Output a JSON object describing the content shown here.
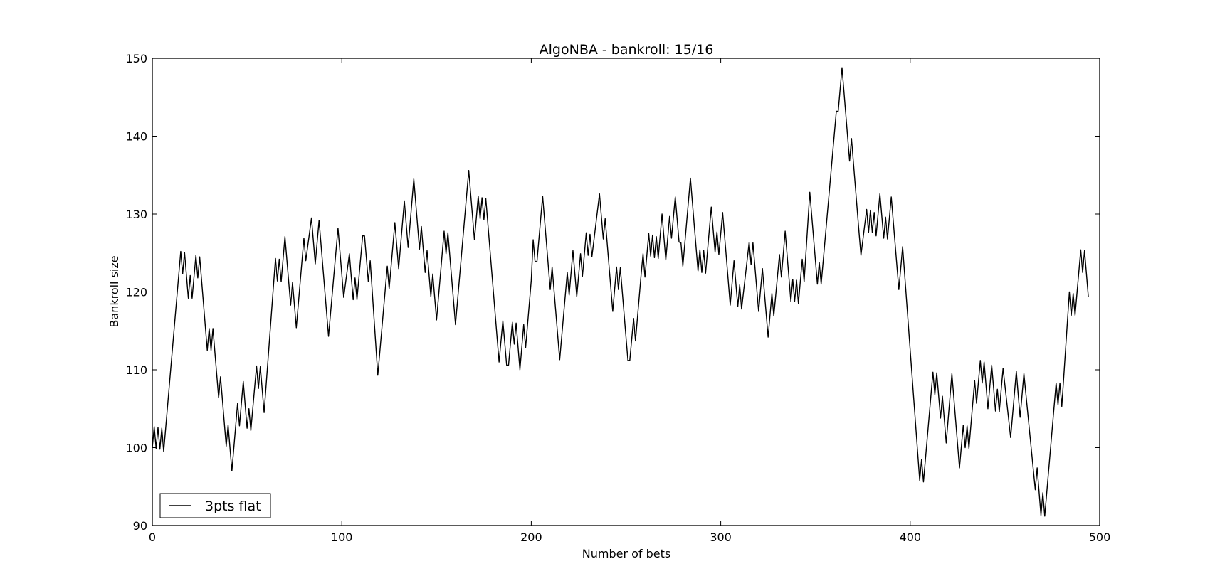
{
  "chart_data": {
    "type": "line",
    "title": "AlgoNBA - bankroll: 15/16",
    "xlabel": "Number of bets",
    "ylabel": "Bankroll size",
    "xlim": [
      0,
      500
    ],
    "ylim": [
      90,
      150
    ],
    "xticks": [
      "0",
      "100",
      "200",
      "300",
      "400",
      "500"
    ],
    "yticks": [
      "90",
      "100",
      "110",
      "120",
      "130",
      "140",
      "150"
    ],
    "grid": false,
    "legend_position": "lower-left",
    "series": [
      {
        "name": "3pts flat",
        "color": "#000000",
        "points": [
          [
            0,
            100
          ],
          [
            1,
            102.7
          ],
          [
            2,
            99.9
          ],
          [
            3,
            102.6
          ],
          [
            4,
            99.8
          ],
          [
            5,
            102.5
          ],
          [
            6,
            99.5
          ],
          [
            15,
            125.2
          ],
          [
            16,
            122.3
          ],
          [
            17,
            125.1
          ],
          [
            19,
            119.2
          ],
          [
            20,
            122.1
          ],
          [
            21,
            119.2
          ],
          [
            23,
            124.7
          ],
          [
            24,
            121.8
          ],
          [
            25,
            124.5
          ],
          [
            29,
            112.5
          ],
          [
            30,
            115.3
          ],
          [
            31,
            112.5
          ],
          [
            32,
            115.3
          ],
          [
            35,
            106.4
          ],
          [
            36,
            109.1
          ],
          [
            39,
            100.2
          ],
          [
            40,
            102.9
          ],
          [
            42,
            97
          ],
          [
            45,
            105.7
          ],
          [
            46,
            102.8
          ],
          [
            48,
            108.5
          ],
          [
            50,
            102.5
          ],
          [
            51,
            105
          ],
          [
            52,
            102.2
          ],
          [
            55,
            110.5
          ],
          [
            56,
            107.6
          ],
          [
            57,
            110.4
          ],
          [
            59,
            104.5
          ],
          [
            65,
            124.3
          ],
          [
            66,
            121.4
          ],
          [
            67,
            124.2
          ],
          [
            68,
            121.3
          ],
          [
            70,
            127.1
          ],
          [
            73,
            118.3
          ],
          [
            74,
            121.2
          ],
          [
            76,
            115.4
          ],
          [
            80,
            126.9
          ],
          [
            81,
            124
          ],
          [
            84,
            129.5
          ],
          [
            86,
            123.6
          ],
          [
            88,
            129.2
          ],
          [
            93,
            114.3
          ],
          [
            98,
            128.2
          ],
          [
            101,
            119.3
          ],
          [
            104,
            124.9
          ],
          [
            105,
            121.9
          ],
          [
            106,
            119
          ],
          [
            107,
            121.8
          ],
          [
            108,
            119
          ],
          [
            111,
            127.2
          ],
          [
            112,
            127.2
          ],
          [
            114,
            121.3
          ],
          [
            115,
            124
          ],
          [
            119,
            109.3
          ],
          [
            124,
            123.3
          ],
          [
            125,
            120.4
          ],
          [
            128,
            128.9
          ],
          [
            130,
            123
          ],
          [
            133,
            131.7
          ],
          [
            135,
            125.7
          ],
          [
            138,
            134.5
          ],
          [
            141,
            125.5
          ],
          [
            142,
            128.4
          ],
          [
            144,
            122.5
          ],
          [
            145,
            125.3
          ],
          [
            147,
            119.4
          ],
          [
            148,
            122.3
          ],
          [
            150,
            116.4
          ],
          [
            154,
            127.8
          ],
          [
            155,
            124.9
          ],
          [
            156,
            127.6
          ],
          [
            160,
            115.8
          ],
          [
            167,
            135.6
          ],
          [
            170,
            126.7
          ],
          [
            172,
            132.3
          ],
          [
            173,
            129.4
          ],
          [
            174,
            132.1
          ],
          [
            175,
            129.3
          ],
          [
            176,
            132
          ],
          [
            183,
            111
          ],
          [
            185,
            116.3
          ],
          [
            187,
            110.6
          ],
          [
            188,
            110.6
          ],
          [
            190,
            116.1
          ],
          [
            191,
            113.3
          ],
          [
            192,
            116
          ],
          [
            194,
            110
          ],
          [
            196,
            115.8
          ],
          [
            197,
            112.8
          ],
          [
            200,
            121.5
          ],
          [
            201,
            126.7
          ],
          [
            202,
            123.9
          ],
          [
            203,
            123.9
          ],
          [
            206,
            132.3
          ],
          [
            210,
            120.3
          ],
          [
            211,
            123.2
          ],
          [
            215,
            111.3
          ],
          [
            219,
            122.5
          ],
          [
            220,
            119.6
          ],
          [
            222,
            125.3
          ],
          [
            224,
            119.4
          ],
          [
            226,
            124.9
          ],
          [
            227,
            122
          ],
          [
            229,
            127.6
          ],
          [
            230,
            124.7
          ],
          [
            231,
            127.4
          ],
          [
            232,
            124.5
          ],
          [
            236,
            132.6
          ],
          [
            237,
            129.7
          ],
          [
            238,
            126.8
          ],
          [
            239,
            129.4
          ],
          [
            243,
            117.5
          ],
          [
            245,
            123.2
          ],
          [
            246,
            120.3
          ],
          [
            247,
            123.1
          ],
          [
            251,
            111.2
          ],
          [
            252,
            111.2
          ],
          [
            254,
            116.6
          ],
          [
            255,
            113.7
          ],
          [
            258,
            122.3
          ],
          [
            259,
            124.9
          ],
          [
            260,
            121.9
          ],
          [
            262,
            127.5
          ],
          [
            263,
            124.6
          ],
          [
            264,
            127.3
          ],
          [
            265,
            124.4
          ],
          [
            266,
            127.1
          ],
          [
            267,
            124.3
          ],
          [
            269,
            130
          ],
          [
            271,
            124.1
          ],
          [
            273,
            129.7
          ],
          [
            274,
            126.9
          ],
          [
            276,
            132.2
          ],
          [
            278,
            126.4
          ],
          [
            279,
            126.3
          ],
          [
            280,
            123.3
          ],
          [
            284,
            134.6
          ],
          [
            286,
            128.6
          ],
          [
            288,
            122.7
          ],
          [
            289,
            125.4
          ],
          [
            290,
            122.5
          ],
          [
            291,
            125.3
          ],
          [
            292,
            122.4
          ],
          [
            295,
            130.9
          ],
          [
            297,
            125.1
          ],
          [
            298,
            127.7
          ],
          [
            299,
            124.8
          ],
          [
            301,
            130.2
          ],
          [
            303,
            124.3
          ],
          [
            305,
            118.3
          ],
          [
            307,
            124
          ],
          [
            309,
            118.1
          ],
          [
            310,
            120.9
          ],
          [
            311,
            117.8
          ],
          [
            315,
            126.4
          ],
          [
            316,
            123.5
          ],
          [
            317,
            126.3
          ],
          [
            319,
            120.4
          ],
          [
            320,
            117.5
          ],
          [
            322,
            123
          ],
          [
            325,
            114.2
          ],
          [
            327,
            119.8
          ],
          [
            328,
            116.9
          ],
          [
            331,
            124.8
          ],
          [
            332,
            121.9
          ],
          [
            334,
            127.8
          ],
          [
            337,
            118.8
          ],
          [
            338,
            121.6
          ],
          [
            339,
            118.8
          ],
          [
            340,
            121.5
          ],
          [
            341,
            118.5
          ],
          [
            343,
            124.2
          ],
          [
            344,
            121.3
          ],
          [
            347,
            132.8
          ],
          [
            351,
            121
          ],
          [
            352,
            123.8
          ],
          [
            353,
            121
          ],
          [
            361,
            143.2
          ],
          [
            362,
            143.2
          ],
          [
            364,
            148.8
          ],
          [
            368,
            136.8
          ],
          [
            369,
            139.7
          ],
          [
            373,
            127.6
          ],
          [
            374,
            124.7
          ],
          [
            377,
            130.6
          ],
          [
            378,
            127.6
          ],
          [
            379,
            130.5
          ],
          [
            380,
            127.6
          ],
          [
            381,
            130.2
          ],
          [
            382,
            127.2
          ],
          [
            384,
            132.6
          ],
          [
            386,
            126.9
          ],
          [
            387,
            129.6
          ],
          [
            388,
            126.8
          ],
          [
            390,
            132.2
          ],
          [
            394,
            120.3
          ],
          [
            396,
            125.8
          ],
          [
            405,
            95.8
          ],
          [
            406,
            98.5
          ],
          [
            407,
            95.6
          ],
          [
            412,
            109.7
          ],
          [
            413,
            106.8
          ],
          [
            414,
            109.6
          ],
          [
            416,
            103.8
          ],
          [
            417,
            106.6
          ],
          [
            419,
            100.6
          ],
          [
            422,
            109.5
          ],
          [
            426,
            97.4
          ],
          [
            428,
            102.9
          ],
          [
            429,
            100
          ],
          [
            430,
            102.8
          ],
          [
            431,
            99.9
          ],
          [
            434,
            108.6
          ],
          [
            435,
            105.7
          ],
          [
            437,
            111.2
          ],
          [
            438,
            108.3
          ],
          [
            439,
            111
          ],
          [
            441,
            105
          ],
          [
            442,
            107.8
          ],
          [
            443,
            110.6
          ],
          [
            444,
            107.7
          ],
          [
            445,
            104.7
          ],
          [
            446,
            107.5
          ],
          [
            447,
            104.6
          ],
          [
            449,
            110.2
          ],
          [
            453,
            101.3
          ],
          [
            456,
            109.8
          ],
          [
            457,
            106.8
          ],
          [
            458,
            103.9
          ],
          [
            460,
            109.5
          ],
          [
            466,
            94.6
          ],
          [
            467,
            97.4
          ],
          [
            469,
            91.3
          ],
          [
            470,
            94.2
          ],
          [
            471,
            91.2
          ],
          [
            477,
            108.3
          ],
          [
            478,
            105.5
          ],
          [
            479,
            108.3
          ],
          [
            480,
            105.3
          ],
          [
            484,
            120
          ],
          [
            485,
            117
          ],
          [
            486,
            119.8
          ],
          [
            487,
            117
          ],
          [
            490,
            125.4
          ],
          [
            491,
            122.5
          ],
          [
            492,
            125.3
          ],
          [
            494,
            119.4
          ]
        ]
      }
    ]
  }
}
